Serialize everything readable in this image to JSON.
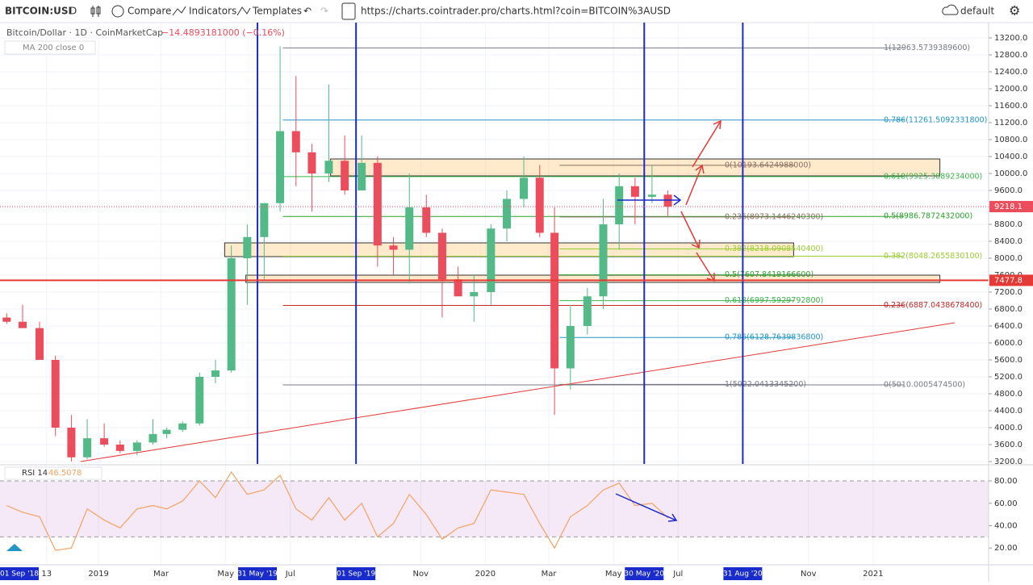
{
  "toolbar": {
    "symbol": "BITCOIN:USI",
    "interval": "D",
    "compare": "Compare",
    "indicators": "Indicators",
    "templates": "Templates",
    "url": "https://charts.cointrader.pro/charts.html?coin=BITCOIN%3AUSD",
    "theme": "default"
  },
  "legend": {
    "title": "Bitcoin/Dollar · 1D · CoinMarketCap",
    "change": "−14.4893181000 (−0.16%)",
    "ma": "MA 200 close 0"
  },
  "chart_data": [
    {
      "type": "candlestick",
      "x": [
        "2018-10-01",
        "2018-10-16",
        "2018-11-01",
        "2018-11-16",
        "2018-12-01",
        "2018-12-16",
        "2019-01-01",
        "2019-01-16",
        "2019-02-01",
        "2019-02-16",
        "2019-03-01",
        "2019-03-16",
        "2019-04-01",
        "2019-04-16",
        "2019-05-01",
        "2019-05-16",
        "2019-06-01",
        "2019-06-16",
        "2019-07-01",
        "2019-07-16",
        "2019-08-01",
        "2019-08-16",
        "2019-09-01",
        "2019-09-16",
        "2019-10-01",
        "2019-10-16",
        "2019-11-01",
        "2019-11-16",
        "2019-12-01",
        "2019-12-16",
        "2020-01-01",
        "2020-01-16",
        "2020-02-01",
        "2020-02-16",
        "2020-03-01",
        "2020-03-16",
        "2020-04-01",
        "2020-04-16",
        "2020-05-01",
        "2020-05-16",
        "2020-06-01",
        "2020-06-16"
      ],
      "open": [
        6600,
        6500,
        6350,
        5600,
        4000,
        3300,
        3750,
        3600,
        3450,
        3650,
        3850,
        3950,
        4100,
        5200,
        5350,
        8000,
        8500,
        9300,
        11000,
        10500,
        10000,
        10300,
        9600,
        10250,
        8300,
        8200,
        9200,
        8600,
        7500,
        7100,
        7200,
        8700,
        9400,
        9900,
        8600,
        5400,
        6400,
        7100,
        8800,
        9700,
        9450,
        9500
      ],
      "high": [
        6700,
        6900,
        6500,
        5700,
        4300,
        4200,
        4100,
        3700,
        3700,
        4200,
        4000,
        4150,
        5300,
        5600,
        8300,
        8800,
        9300,
        13000,
        12300,
        10700,
        12100,
        10900,
        10900,
        10400,
        8500,
        10000,
        9500,
        8700,
        7800,
        7600,
        8800,
        9600,
        10400,
        10200,
        9200,
        6900,
        7300,
        9400,
        10000,
        9900,
        10200,
        9600
      ],
      "low": [
        6450,
        6350,
        5600,
        3800,
        3200,
        3250,
        3550,
        3400,
        3350,
        3600,
        3750,
        3900,
        4050,
        5050,
        5300,
        6900,
        7500,
        9100,
        9700,
        9100,
        9800,
        9500,
        9600,
        7800,
        7600,
        7400,
        8500,
        6600,
        7100,
        6500,
        6900,
        8400,
        9200,
        8500,
        4300,
        4900,
        6200,
        6800,
        8200,
        8800,
        9300,
        9000
      ],
      "close": [
        6500,
        6350,
        5600,
        4000,
        3300,
        3750,
        3600,
        3450,
        3650,
        3850,
        3950,
        4100,
        5200,
        5350,
        8000,
        8500,
        9300,
        11000,
        10500,
        10000,
        10300,
        9600,
        10250,
        8300,
        8200,
        9200,
        8600,
        7500,
        7100,
        7200,
        8700,
        9400,
        9900,
        8600,
        5400,
        6400,
        7100,
        8800,
        9700,
        9450,
        9500,
        9218
      ],
      "up_color": "#53b987",
      "down_color": "#eb4d5c",
      "xlim": [
        "2018-09-30",
        "2021-04-20"
      ],
      "xticks": [
        {
          "value": "2018-11-13",
          "label": "13"
        },
        {
          "value": "2019-01-01",
          "label": "2019"
        },
        {
          "value": "2019-03-01",
          "label": "Mar"
        },
        {
          "value": "2019-05-01",
          "label": "May"
        },
        {
          "value": "2019-07-01",
          "label": "Jul"
        },
        {
          "value": "2019-11-01",
          "label": "Nov"
        },
        {
          "value": "2020-01-01",
          "label": "2020"
        },
        {
          "value": "2020-03-01",
          "label": "Mar"
        },
        {
          "value": "2020-05-01",
          "label": "May"
        },
        {
          "value": "2020-07-01",
          "label": "Jul"
        },
        {
          "value": "2020-11-01",
          "label": "Nov"
        },
        {
          "value": "2021-01-01",
          "label": "2021"
        }
      ],
      "cursor_label": {
        "value": "2018-09-01",
        "label": "01 Sep '18"
      },
      "vlines": [
        {
          "value": "2019-05-31",
          "label": "31 May '19"
        },
        {
          "value": "2019-09-01",
          "label": "01 Sep '19"
        },
        {
          "value": "2020-05-30",
          "label": "30 May '20"
        },
        {
          "value": "2020-08-31",
          "label": "31 Aug '20"
        }
      ],
      "ylim": [
        3143,
        13524
      ],
      "yticks": [
        {
          "value": 3200,
          "label": "3200.0"
        },
        {
          "value": 3600,
          "label": "3600.0"
        },
        {
          "value": 4000,
          "label": "4000.0"
        },
        {
          "value": 4400,
          "label": "4400.0"
        },
        {
          "value": 4800,
          "label": "4800.0"
        },
        {
          "value": 5200,
          "label": "5200.0"
        },
        {
          "value": 5600,
          "label": "5600.0"
        },
        {
          "value": 6000,
          "label": "6000.0"
        },
        {
          "value": 6400,
          "label": "6400.0"
        },
        {
          "value": 6800,
          "label": "6800.0"
        },
        {
          "value": 7200,
          "label": "7200.0"
        },
        {
          "value": 7600,
          "label": "7600.0"
        },
        {
          "value": 8000,
          "label": "8000.0"
        },
        {
          "value": 8400,
          "label": "8400.0"
        },
        {
          "value": 8800,
          "label": "8800.0"
        },
        {
          "value": 9200,
          "label": "9200.0"
        },
        {
          "value": 9600,
          "label": "9600.0"
        },
        {
          "value": 10000,
          "label": "10000.0"
        },
        {
          "value": 10400,
          "label": "10400.0"
        },
        {
          "value": 10800,
          "label": "10800.0"
        },
        {
          "value": 11200,
          "label": "11200.0"
        },
        {
          "value": 11600,
          "label": "11600.0"
        },
        {
          "value": 12000,
          "label": "12000.0"
        },
        {
          "value": 12400,
          "label": "12400.0"
        },
        {
          "value": 12800,
          "label": "12800.0"
        },
        {
          "value": 13200,
          "label": "13200.0"
        }
      ],
      "grid": true,
      "last_price": 9218.1,
      "price_line": 7477.8,
      "fib_groups": [
        {
          "x": [
            "2019-06-24",
            "2021-01-30"
          ],
          "levels": [
            {
              "label": "1(12963.5739389600)",
              "value": 12963.57393896,
              "color": "#787b86"
            },
            {
              "label": "0.786(11261.5092331800)",
              "value": 11261.50923318,
              "color": "#2196c4"
            },
            {
              "label": "0.618(9925.3089234000)",
              "value": 9925.3089234,
              "color": "#3cb44b"
            },
            {
              "label": "0.5(8986.7872432000)",
              "value": 8986.7872432,
              "color": "#2aa12a"
            },
            {
              "label": "0.382(8048.2655830100)",
              "value": 8048.26558301,
              "color": "#9acd32"
            },
            {
              "label": "0.236(6887.0438678400)",
              "value": 6887.04386784,
              "color": "#c62828"
            },
            {
              "label": "0(5010.0005474500)",
              "value": 5010.00054745,
              "color": "#787b86"
            }
          ]
        },
        {
          "x": [
            "2020-03-11",
            "2020-10-19"
          ],
          "levels": [
            {
              "label": "0(10193.6424988000)",
              "value": 10193.6424988,
              "color": "#8d6e63"
            },
            {
              "label": "0.236(8973.1446240300)",
              "value": 8973.14462403,
              "color": "#8d6e63"
            },
            {
              "label": "0.382(8218.0908540400)",
              "value": 8218.09085404,
              "color": "#9acd32"
            },
            {
              "label": "0.5(7607.8419166600)",
              "value": 7607.84191666,
              "color": "#2aa12a"
            },
            {
              "label": "0.618(6997.5929792800)",
              "value": 6997.59297928,
              "color": "#3cb44b"
            },
            {
              "label": "0.786(6128.7639836800)",
              "value": 6128.76398368,
              "color": "#2196c4"
            },
            {
              "label": "1(5022.0413345200)",
              "value": 5022.04133452,
              "color": "#787b86"
            }
          ]
        }
      ],
      "zones": [
        {
          "x": [
            "2019-08-08",
            "2021-03-05"
          ],
          "values": [
            9943,
            10343
          ]
        },
        {
          "x": [
            "2019-04-30",
            "2020-10-18"
          ],
          "values": [
            8038,
            8362
          ]
        },
        {
          "x": [
            "2019-05-20",
            "2021-03-05"
          ],
          "values": [
            7429,
            7600
          ]
        }
      ],
      "trend_line": {
        "x": [
          "2018-12-15",
          "2021-03-19"
        ],
        "values": [
          3200,
          6476
        ],
        "color": "#e53935"
      }
    },
    {
      "type": "line",
      "title": "RSI 14",
      "value_label": "46.5078",
      "color": "#f4a261",
      "x": [
        "2018-10-01",
        "2018-10-16",
        "2018-11-01",
        "2018-11-16",
        "2018-12-01",
        "2018-12-16",
        "2019-01-01",
        "2019-01-16",
        "2019-02-01",
        "2019-02-16",
        "2019-03-01",
        "2019-03-16",
        "2019-04-01",
        "2019-04-16",
        "2019-05-01",
        "2019-05-16",
        "2019-06-01",
        "2019-06-16",
        "2019-07-01",
        "2019-07-16",
        "2019-08-01",
        "2019-08-16",
        "2019-09-01",
        "2019-09-16",
        "2019-10-01",
        "2019-10-16",
        "2019-11-01",
        "2019-11-16",
        "2019-12-01",
        "2019-12-16",
        "2020-01-01",
        "2020-01-16",
        "2020-02-01",
        "2020-02-16",
        "2020-03-01",
        "2020-03-16",
        "2020-04-01",
        "2020-04-16",
        "2020-05-01",
        "2020-05-16",
        "2020-06-01",
        "2020-06-16"
      ],
      "values": [
        58,
        52,
        48,
        18,
        20,
        55,
        45,
        38,
        55,
        58,
        55,
        62,
        80,
        65,
        88,
        68,
        72,
        85,
        55,
        45,
        65,
        45,
        60,
        30,
        42,
        68,
        50,
        28,
        38,
        42,
        72,
        70,
        68,
        42,
        20,
        48,
        58,
        72,
        78,
        58,
        60,
        47
      ],
      "ylim": [
        5,
        93
      ],
      "yticks": [
        {
          "value": 20,
          "label": "20.00"
        },
        {
          "value": 40,
          "label": "40.00"
        },
        {
          "value": 60,
          "label": "60.00"
        },
        {
          "value": 80,
          "label": "80.00"
        }
      ],
      "bands": [
        30,
        80
      ]
    }
  ]
}
